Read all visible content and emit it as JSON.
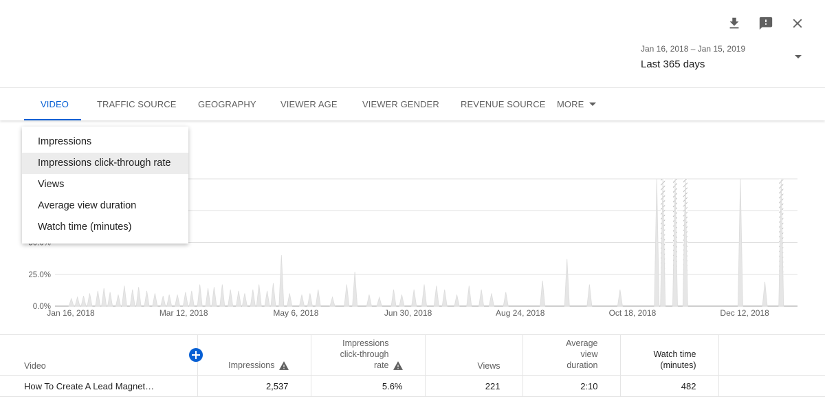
{
  "header": {
    "icons": [
      "download-icon",
      "feedback-icon",
      "close-icon"
    ],
    "date_range": "Jan 16, 2018 – Jan 15, 2019",
    "period_label": "Last 365 days"
  },
  "tabs": [
    {
      "label": "VIDEO",
      "active": true
    },
    {
      "label": "TRAFFIC SOURCE",
      "active": false
    },
    {
      "label": "GEOGRAPHY",
      "active": false
    },
    {
      "label": "VIEWER AGE",
      "active": false
    },
    {
      "label": "VIEWER GENDER",
      "active": false
    },
    {
      "label": "REVENUE SOURCE",
      "active": false
    },
    {
      "label": "MORE",
      "active": false
    }
  ],
  "metric_menu": {
    "items": [
      "Impressions",
      "Impressions click-through rate",
      "Views",
      "Average view duration",
      "Watch time (minutes)"
    ],
    "highlighted": "Impressions click-through rate"
  },
  "chart_data": {
    "type": "area",
    "y_ticks": [
      "0.0%",
      "25.0%",
      "50.0%"
    ],
    "x_ticks": [
      "Jan 16, 2018",
      "Mar 12, 2018",
      "May 6, 2018",
      "Jun 30, 2018",
      "Aug 24, 2018",
      "Oct 18, 2018",
      "Dec 12, 2018"
    ],
    "ylim": [
      0,
      100
    ],
    "grid": true,
    "series_color": "#e6e6e6",
    "x": [
      "2018-01-24",
      "2018-01-27",
      "2018-01-30",
      "2018-02-02",
      "2018-02-06",
      "2018-02-09",
      "2018-02-12",
      "2018-02-16",
      "2018-02-19",
      "2018-02-23",
      "2018-02-26",
      "2018-03-02",
      "2018-03-06",
      "2018-03-10",
      "2018-03-13",
      "2018-03-17",
      "2018-03-21",
      "2018-03-24",
      "2018-03-28",
      "2018-04-01",
      "2018-04-04",
      "2018-04-08",
      "2018-04-12",
      "2018-04-16",
      "2018-04-19",
      "2018-04-23",
      "2018-04-26",
      "2018-04-30",
      "2018-05-03",
      "2018-05-07",
      "2018-05-11",
      "2018-05-17",
      "2018-05-21",
      "2018-05-25",
      "2018-06-01",
      "2018-06-08",
      "2018-06-12",
      "2018-06-19",
      "2018-06-24",
      "2018-07-01",
      "2018-07-05",
      "2018-07-11",
      "2018-07-16",
      "2018-07-22",
      "2018-07-26",
      "2018-08-01",
      "2018-08-07",
      "2018-08-13",
      "2018-08-18",
      "2018-08-25",
      "2018-09-12",
      "2018-09-24",
      "2018-10-05",
      "2018-10-20",
      "2018-11-07",
      "2018-11-10",
      "2018-11-16",
      "2018-11-21",
      "2018-12-18",
      "2018-12-30",
      "2019-01-07"
    ],
    "values": [
      6,
      7,
      8,
      10,
      12,
      14,
      11,
      9,
      16,
      13,
      15,
      12,
      10,
      8,
      9,
      9,
      11,
      12,
      17,
      14,
      15,
      17,
      13,
      12,
      10,
      13,
      17,
      12,
      18,
      40,
      10,
      9,
      10,
      13,
      7,
      17,
      27,
      9,
      7,
      13,
      9,
      13,
      17,
      16,
      13,
      9,
      16,
      13,
      10,
      11,
      20,
      37,
      17,
      13,
      100,
      100,
      100,
      100,
      100,
      19,
      100
    ],
    "hatched_dates": [
      "2018-11-10",
      "2018-11-16",
      "2018-11-21",
      "2019-01-07"
    ]
  },
  "table": {
    "columns": [
      {
        "label": "Video",
        "warn": false
      },
      {
        "label": "Impressions",
        "warn": true
      },
      {
        "label": "Impressions click-through rate",
        "warn": true
      },
      {
        "label": "Views",
        "warn": false
      },
      {
        "label": "Average view duration",
        "warn": false
      },
      {
        "label": "Watch time (minutes)",
        "warn": false
      }
    ],
    "rows": [
      {
        "video": "How To Create A Lead Magnet…",
        "impressions": "2,537",
        "ctr": "5.6%",
        "views": "221",
        "avg_duration": "2:10",
        "watch_time": "482"
      }
    ]
  }
}
